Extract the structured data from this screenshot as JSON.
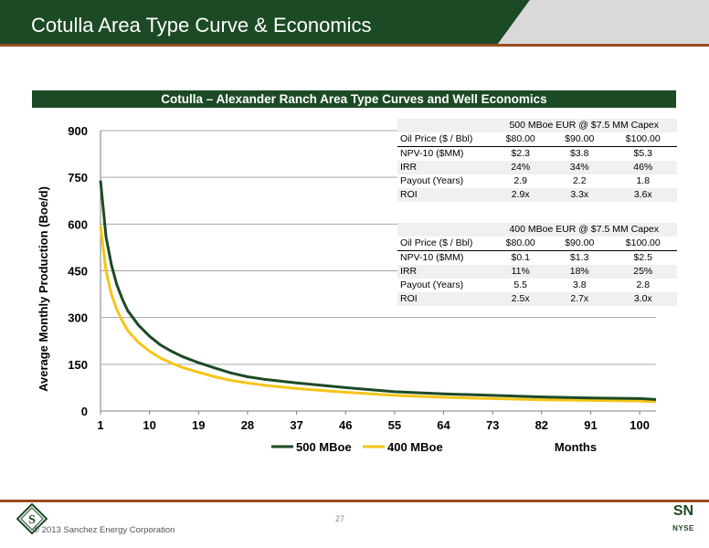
{
  "slide": {
    "title": "Cotulla Area Type Curve & Economics",
    "section_header": "Cotulla – Alexander Ranch Area Type Curves and Well Economics",
    "page_number": "27",
    "copyright": "© 2013 Sanchez Energy Corporation",
    "ticker_symbol": "SN",
    "exchange": "NYSE",
    "logo_letter": "S"
  },
  "colors": {
    "brand_green": "#1c4a25",
    "accent_rust": "#9a4a1f",
    "series_500": "#1c4a25",
    "series_400": "#f5c518"
  },
  "chart_data": {
    "type": "line",
    "xlabel": "Months",
    "ylabel": "Average Monthly Production (Boe/d)",
    "ylim": [
      0,
      900
    ],
    "xlim": [
      1,
      103
    ],
    "yticks": [
      0,
      150,
      300,
      450,
      600,
      750,
      900
    ],
    "xticks": [
      1,
      10,
      19,
      28,
      37,
      46,
      55,
      64,
      73,
      82,
      91,
      100
    ],
    "grid": "horizontal",
    "legend_position": "bottom",
    "x": [
      1,
      2,
      3,
      4,
      5,
      6,
      8,
      10,
      12,
      14,
      16,
      19,
      22,
      25,
      28,
      31,
      37,
      46,
      55,
      64,
      73,
      82,
      91,
      100,
      103
    ],
    "series": [
      {
        "name": "500 MBoe",
        "values": [
          740,
          560,
          470,
          405,
          360,
          322,
          275,
          240,
          212,
          192,
          175,
          155,
          138,
          122,
          110,
          102,
          90,
          75,
          62,
          55,
          50,
          45,
          42,
          40,
          37
        ]
      },
      {
        "name": "400 MBoe",
        "values": [
          595,
          450,
          375,
          325,
          290,
          258,
          220,
          192,
          170,
          154,
          140,
          124,
          110,
          98,
          90,
          83,
          72,
          60,
          50,
          44,
          40,
          36,
          34,
          32,
          30
        ]
      }
    ]
  },
  "tables": [
    {
      "caption": "500 MBoe EUR @ $7.5 MM Capex",
      "columns": [
        "Oil Price ($ / Bbl)",
        "$80.00",
        "$90.00",
        "$100.00"
      ],
      "rows": [
        [
          "NPV-10 ($MM)",
          "$2.3",
          "$3.8",
          "$5.3"
        ],
        [
          "IRR",
          "24%",
          "34%",
          "46%"
        ],
        [
          "Payout (Years)",
          "2.9",
          "2.2",
          "1.8"
        ],
        [
          "ROI",
          "2.9x",
          "3.3x",
          "3.6x"
        ]
      ]
    },
    {
      "caption": "400 MBoe EUR @ $7.5 MM Capex",
      "columns": [
        "Oil Price ($ / Bbl)",
        "$80.00",
        "$90.00",
        "$100.00"
      ],
      "rows": [
        [
          "NPV-10 ($MM)",
          "$0.1",
          "$1.3",
          "$2.5"
        ],
        [
          "IRR",
          "11%",
          "18%",
          "25%"
        ],
        [
          "Payout (Years)",
          "5.5",
          "3.8",
          "2.8"
        ],
        [
          "ROI",
          "2.5x",
          "2.7x",
          "3.0x"
        ]
      ]
    }
  ]
}
